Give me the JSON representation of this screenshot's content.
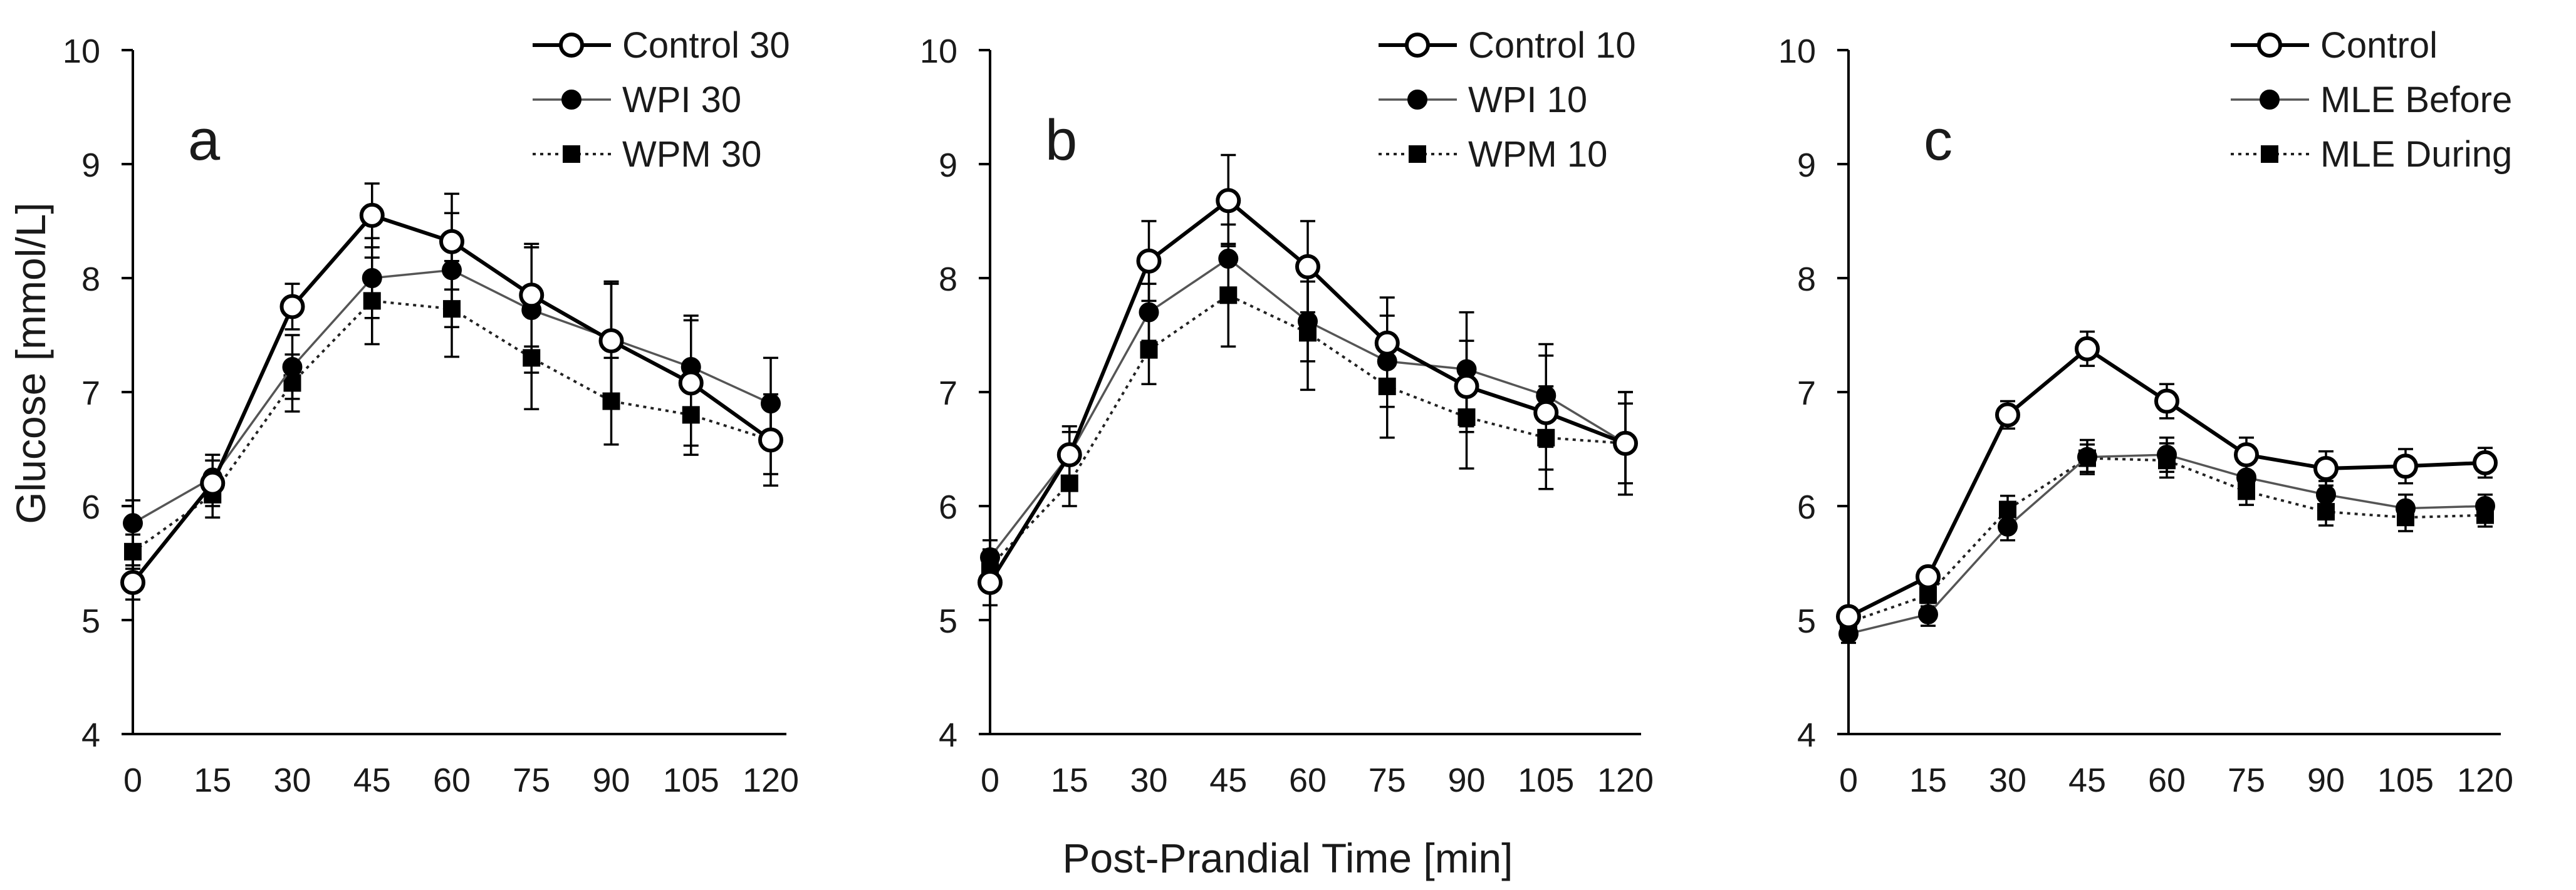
{
  "figure": {
    "ylabel": "Glucose [mmol/L]",
    "xlabel": "Post-Prandial Time [min]"
  },
  "colors": {
    "axis": "#000000",
    "control": "#000000",
    "mid": "#555555",
    "dotted": "#222222",
    "marker_fill_open": "#ffffff",
    "marker_fill_solid": "#000000"
  },
  "chart_data": [
    {
      "type": "line",
      "panel_label": "a",
      "title": "",
      "xlabel": "Post-Prandial Time [min]",
      "ylabel": "Glucose [mmol/L]",
      "x": [
        0,
        15,
        30,
        45,
        60,
        75,
        90,
        105,
        120
      ],
      "xlim": [
        0,
        120
      ],
      "ylim": [
        4,
        10
      ],
      "xticks": [
        "0",
        "15",
        "30",
        "45",
        "60",
        "75",
        "90",
        "105",
        "120"
      ],
      "yticks": [
        "4",
        "5",
        "6",
        "7",
        "8",
        "9",
        "10"
      ],
      "legend_position": "top-right",
      "series": [
        {
          "name": "Control 30",
          "style": "open-circle-solid-bold",
          "values": [
            5.33,
            6.2,
            7.75,
            8.55,
            8.32,
            7.85,
            7.45,
            7.08,
            6.58
          ],
          "errors": [
            0.15,
            0.2,
            0.2,
            0.28,
            0.42,
            0.45,
            0.5,
            0.55,
            0.4
          ]
        },
        {
          "name": "WPI 30",
          "style": "filled-circle-solid-thin",
          "values": [
            5.85,
            6.25,
            7.22,
            8.0,
            8.07,
            7.72,
            7.47,
            7.22,
            6.9
          ],
          "errors": [
            0.2,
            0.2,
            0.28,
            0.35,
            0.5,
            0.55,
            0.5,
            0.45,
            0.4
          ]
        },
        {
          "name": "WPM 30",
          "style": "square-dotted",
          "values": [
            5.6,
            6.1,
            7.08,
            7.8,
            7.73,
            7.3,
            6.92,
            6.8,
            6.58
          ],
          "errors": [
            0.15,
            0.2,
            0.25,
            0.38,
            0.42,
            0.45,
            0.38,
            0.35,
            0.3
          ]
        }
      ]
    },
    {
      "type": "line",
      "panel_label": "b",
      "title": "",
      "xlabel": "Post-Prandial Time [min]",
      "ylabel": "",
      "x": [
        0,
        15,
        30,
        45,
        60,
        75,
        90,
        105,
        120
      ],
      "xlim": [
        0,
        120
      ],
      "ylim": [
        4,
        10
      ],
      "xticks": [
        "0",
        "15",
        "30",
        "45",
        "60",
        "75",
        "90",
        "105",
        "120"
      ],
      "yticks": [
        "4",
        "5",
        "6",
        "7",
        "8",
        "9",
        "10"
      ],
      "legend_position": "top-right",
      "series": [
        {
          "name": "Control 10",
          "style": "open-circle-solid-bold",
          "values": [
            5.33,
            6.45,
            8.15,
            8.68,
            8.1,
            7.43,
            7.05,
            6.82,
            6.55
          ],
          "errors": [
            0.2,
            0.25,
            0.35,
            0.4,
            0.4,
            0.4,
            0.4,
            0.5,
            0.45
          ]
        },
        {
          "name": "WPI 10",
          "style": "filled-circle-solid-thin",
          "values": [
            5.55,
            6.45,
            7.7,
            8.17,
            7.62,
            7.27,
            7.2,
            6.97,
            6.55
          ],
          "errors": [
            0.15,
            0.2,
            0.25,
            0.3,
            0.35,
            0.4,
            0.5,
            0.45,
            0.45
          ]
        },
        {
          "name": "WPM 10",
          "style": "square-dotted",
          "values": [
            5.47,
            6.2,
            7.37,
            7.85,
            7.52,
            7.05,
            6.78,
            6.6,
            6.55
          ],
          "errors": [
            0.15,
            0.2,
            0.3,
            0.45,
            0.5,
            0.45,
            0.45,
            0.45,
            0.35
          ]
        }
      ]
    },
    {
      "type": "line",
      "panel_label": "c",
      "title": "",
      "xlabel": "Post-Prandial Time [min]",
      "ylabel": "",
      "x": [
        0,
        15,
        30,
        45,
        60,
        75,
        90,
        105,
        120
      ],
      "xlim": [
        0,
        120
      ],
      "ylim": [
        4,
        10
      ],
      "xticks": [
        "0",
        "15",
        "30",
        "45",
        "60",
        "75",
        "90",
        "105",
        "120"
      ],
      "yticks": [
        "4",
        "5",
        "6",
        "7",
        "8",
        "9",
        "10"
      ],
      "legend_position": "top-right",
      "series": [
        {
          "name": "Control",
          "style": "open-circle-solid-bold",
          "values": [
            5.03,
            5.38,
            6.8,
            7.38,
            6.92,
            6.45,
            6.33,
            6.35,
            6.38
          ],
          "errors": [
            0.08,
            0.08,
            0.12,
            0.15,
            0.15,
            0.15,
            0.15,
            0.15,
            0.13
          ]
        },
        {
          "name": "MLE Before",
          "style": "filled-circle-solid-thin",
          "values": [
            4.88,
            5.05,
            5.82,
            6.43,
            6.45,
            6.25,
            6.1,
            5.98,
            6.0
          ],
          "errors": [
            0.08,
            0.1,
            0.12,
            0.15,
            0.15,
            0.12,
            0.12,
            0.12,
            0.1
          ]
        },
        {
          "name": "MLE During",
          "style": "square-dotted",
          "values": [
            4.98,
            5.22,
            5.97,
            6.42,
            6.4,
            6.13,
            5.95,
            5.9,
            5.92
          ],
          "errors": [
            0.08,
            0.1,
            0.12,
            0.12,
            0.15,
            0.12,
            0.12,
            0.12,
            0.1
          ]
        }
      ]
    }
  ]
}
